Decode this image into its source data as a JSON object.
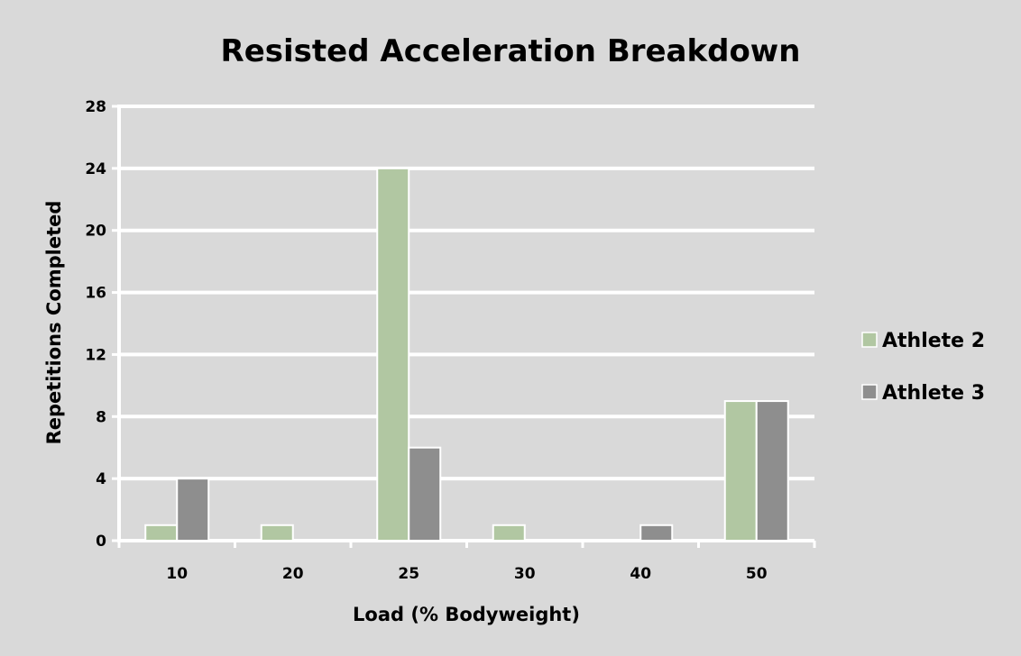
{
  "chart_data": {
    "type": "bar",
    "title": "Resisted Acceleration Breakdown",
    "xlabel": "Load (% Bodyweight)",
    "ylabel": "Repetitions Completed",
    "categories": [
      "10",
      "20",
      "25",
      "30",
      "40",
      "50"
    ],
    "series": [
      {
        "name": "Athlete 2",
        "color": "#b1c7a2",
        "values": [
          1,
          1,
          24,
          1,
          0,
          9
        ]
      },
      {
        "name": "Athlete 3",
        "color": "#8e8e8e",
        "values": [
          4,
          0,
          6,
          0,
          1,
          9
        ]
      }
    ],
    "ylim": [
      0,
      28
    ],
    "yticks": [
      "0",
      "4",
      "8",
      "12",
      "16",
      "20",
      "24",
      "28"
    ],
    "grid": true,
    "legend": "right"
  }
}
